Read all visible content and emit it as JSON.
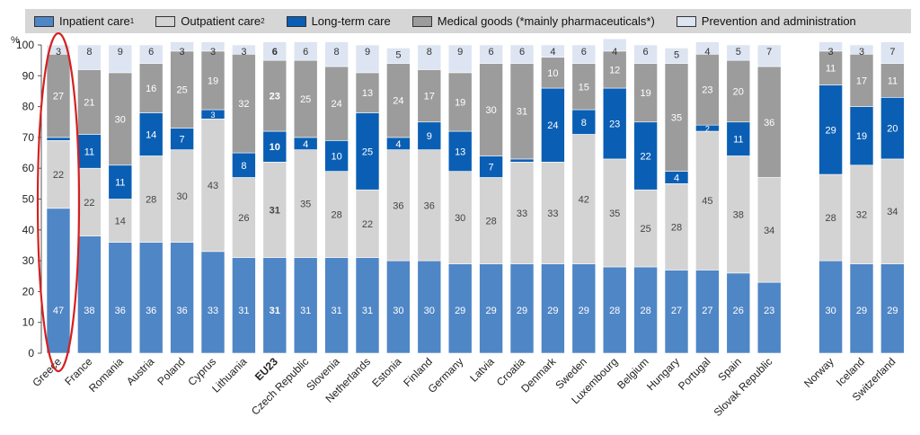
{
  "chart_data": {
    "type": "bar",
    "stacked": true,
    "y_unit": "%",
    "ylim": [
      0,
      100
    ],
    "yticks": [
      0,
      10,
      20,
      30,
      40,
      50,
      60,
      70,
      80,
      90,
      100
    ],
    "grid": false,
    "legend": "top",
    "categories": [
      "Greece",
      "France",
      "Romania",
      "Austria",
      "Poland",
      "Cyprus",
      "Lithuania",
      "EU23",
      "Czech Republic",
      "Slovenia",
      "Netherlands",
      "Estonia",
      "Finland",
      "Germany",
      "Latvia",
      "Croatia",
      "Denmark",
      "Sweden",
      "Luxembourg",
      "Belgium",
      "Hungary",
      "Portugal",
      "Spain",
      "Slovak Republic",
      "Norway",
      "Iceland",
      "Switzerland"
    ],
    "highlighted_category": "Greece",
    "bold_category": "EU23",
    "series": [
      {
        "name": "Inpatient care",
        "sup": "1",
        "color": "#4f86c6",
        "label_color": "#ffffff",
        "values": [
          47,
          38,
          36,
          36,
          36,
          33,
          31,
          31,
          31,
          31,
          31,
          30,
          30,
          29,
          29,
          29,
          29,
          29,
          28,
          28,
          27,
          27,
          26,
          23,
          30,
          29,
          29
        ]
      },
      {
        "name": "Outpatient care",
        "sup": "2",
        "color": "#d3d3d3",
        "label_color": "#444444",
        "values": [
          22,
          22,
          14,
          28,
          30,
          43,
          26,
          31,
          35,
          28,
          22,
          36,
          36,
          30,
          28,
          33,
          33,
          42,
          35,
          25,
          28,
          45,
          38,
          34,
          28,
          32,
          34
        ]
      },
      {
        "name": "Long-term care",
        "sup": "",
        "color": "#0a5fb4",
        "label_color": "#ffffff",
        "values": [
          1,
          11,
          11,
          14,
          7,
          3,
          8,
          10,
          4,
          10,
          25,
          4,
          9,
          13,
          7,
          1,
          24,
          8,
          23,
          22,
          4,
          2,
          11,
          0,
          29,
          19,
          20
        ]
      },
      {
        "name": "Medical goods (*mainly pharmaceuticals*)",
        "sup": "",
        "color": "#9c9c9c",
        "label_color": "#ffffff",
        "values": [
          27,
          21,
          30,
          16,
          25,
          19,
          32,
          23,
          25,
          24,
          13,
          24,
          17,
          19,
          30,
          31,
          10,
          15,
          12,
          19,
          35,
          23,
          20,
          36,
          11,
          17,
          11
        ]
      },
      {
        "name": "Prevention and administration",
        "sup": "",
        "color": "#dde4f2",
        "label_color": "#333333",
        "values": [
          3,
          8,
          9,
          6,
          3,
          3,
          3,
          6,
          6,
          8,
          9,
          5,
          8,
          9,
          6,
          6,
          4,
          6,
          4,
          6,
          5,
          4,
          5,
          7,
          3,
          3,
          7
        ]
      }
    ]
  }
}
